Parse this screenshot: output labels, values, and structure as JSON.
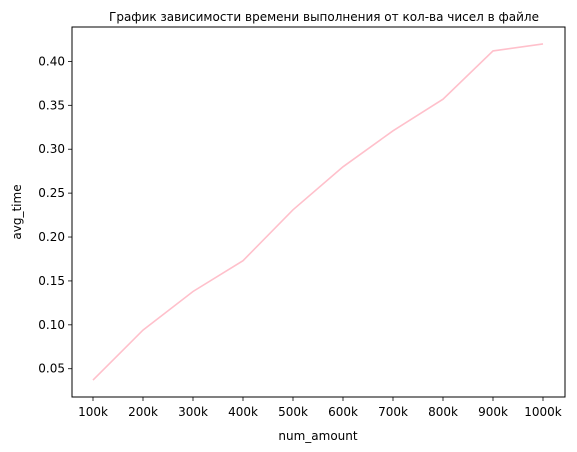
{
  "chart_data": {
    "type": "line",
    "title": "График зависимости времени выполнения от кол-ва чисел в файле",
    "xlabel": "num_amount",
    "ylabel": "avg_time",
    "categories": [
      "100k",
      "200k",
      "300k",
      "400k",
      "500k",
      "600k",
      "700k",
      "800k",
      "900k",
      "1000k"
    ],
    "series": [
      {
        "values": [
          0.037,
          0.094,
          0.138,
          0.173,
          0.231,
          0.28,
          0.321,
          0.357,
          0.412,
          0.42
        ],
        "color": "#ffc0cb"
      }
    ],
    "yticks": [
      "0.05",
      "0.10",
      "0.15",
      "0.20",
      "0.25",
      "0.30",
      "0.35",
      "0.40"
    ],
    "ylim": [
      0.0178,
      0.4392
    ],
    "grid": false,
    "legend": "none"
  }
}
